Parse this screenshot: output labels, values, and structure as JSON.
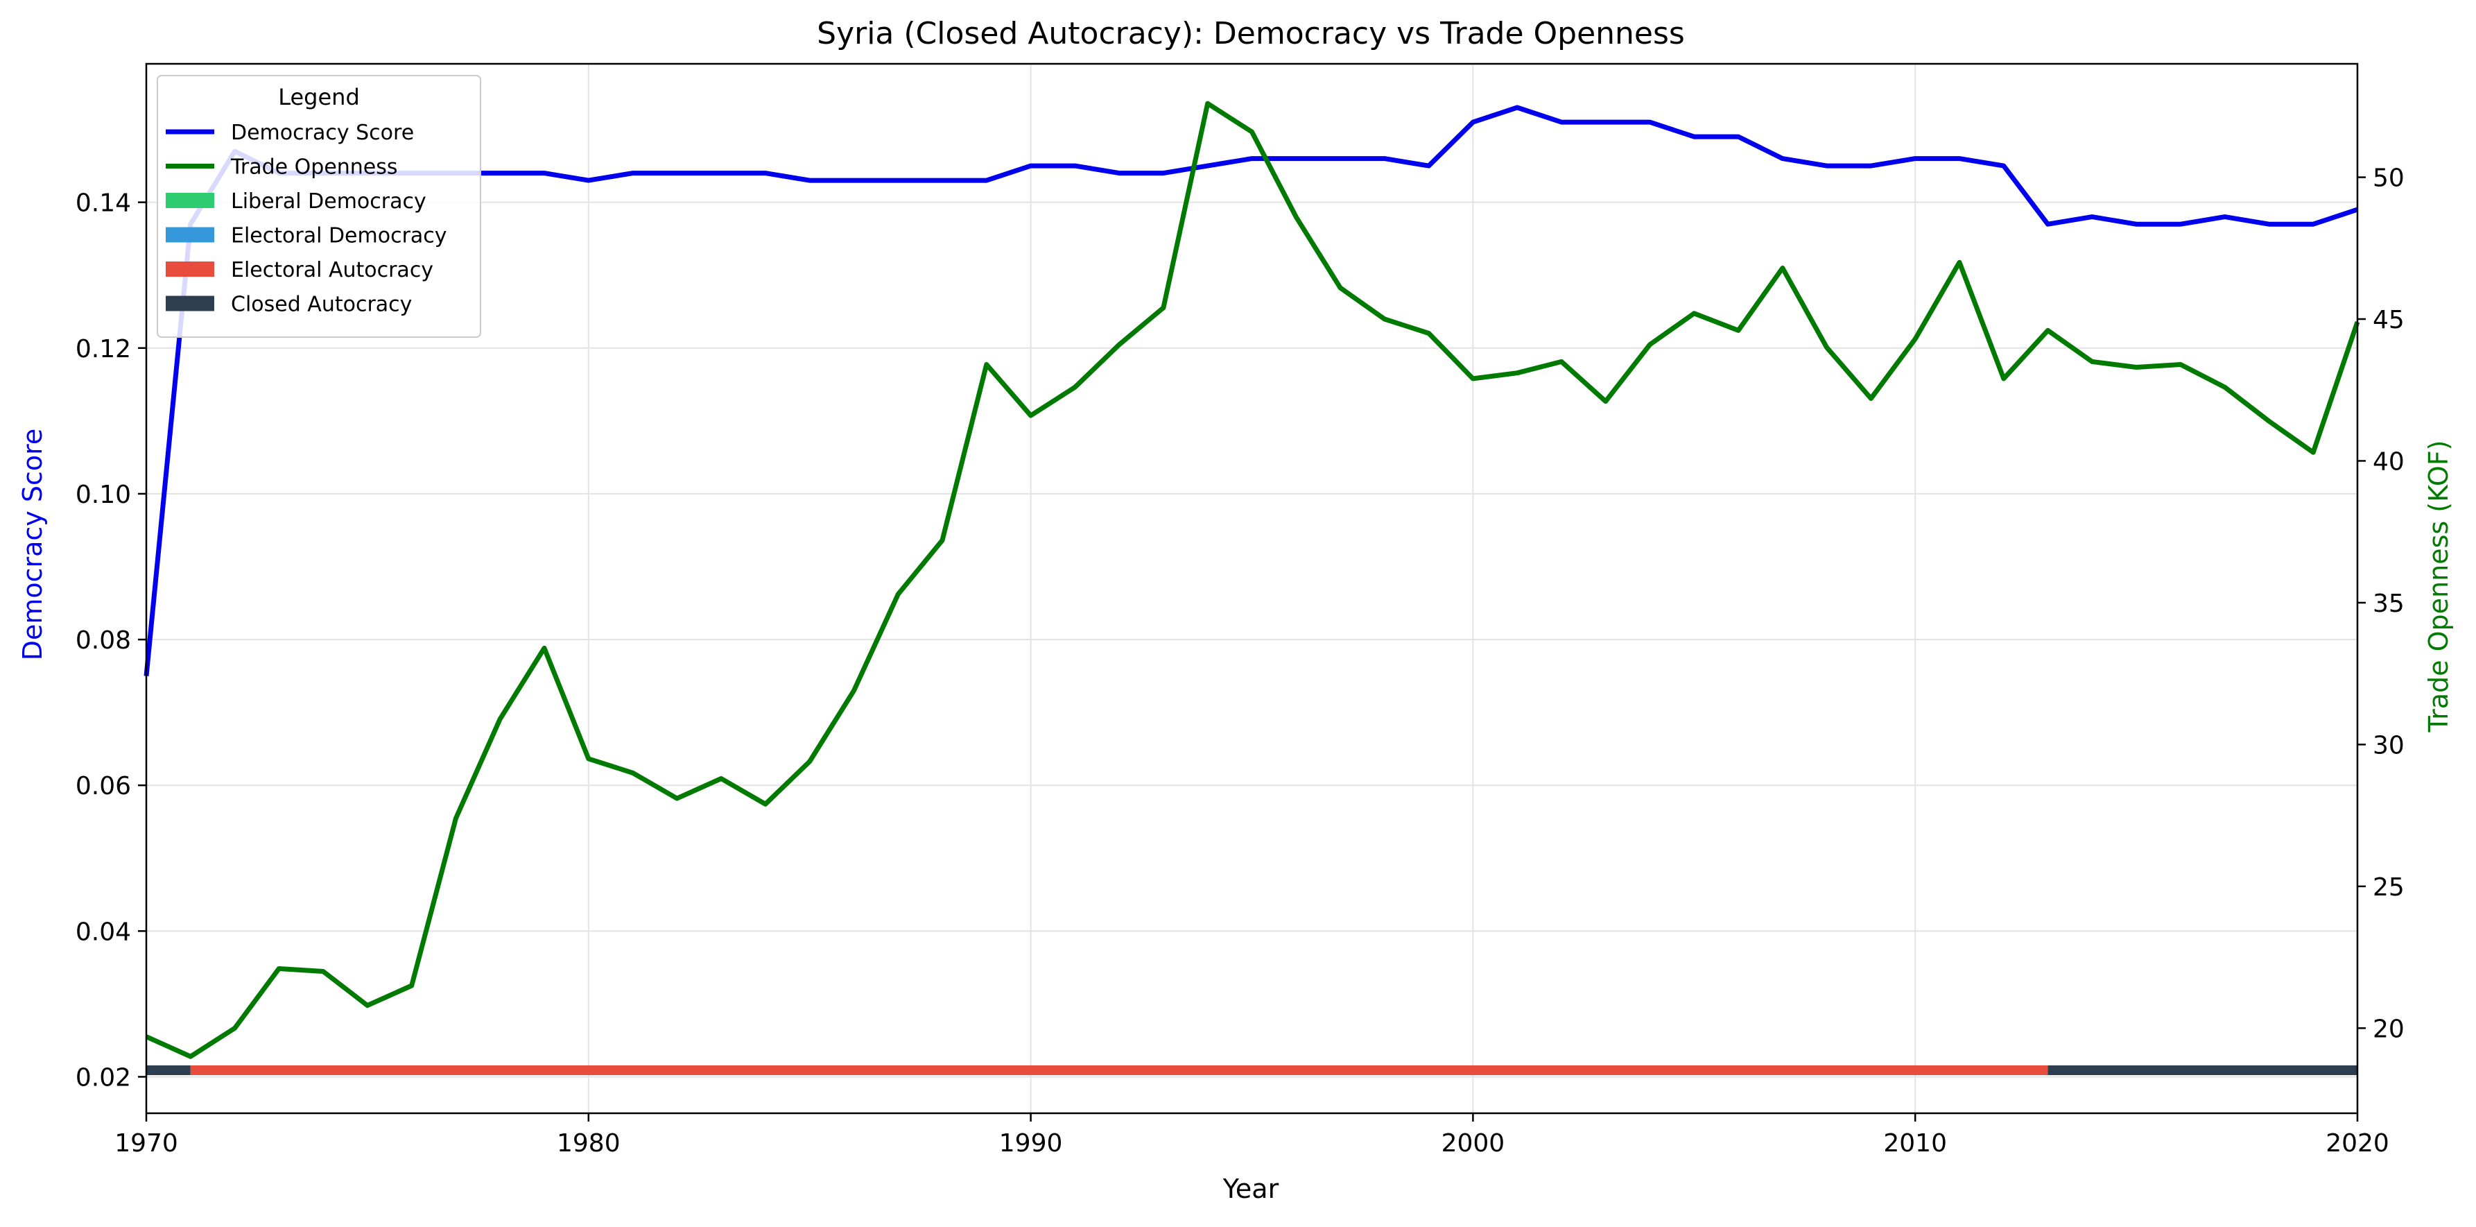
{
  "chart_data": {
    "type": "line",
    "title": "Syria (Closed Autocracy): Democracy vs Trade Openness",
    "xlabel": "Year",
    "ylabel_left": "Democracy Score",
    "ylabel_right": "Trade Openness (KOF)",
    "xlim": [
      1970,
      2020
    ],
    "ylim_left": [
      0.015,
      0.159
    ],
    "ylim_right": [
      17,
      54
    ],
    "xticks": [
      1970,
      1980,
      1990,
      2000,
      2010,
      2020
    ],
    "yticks_left": [
      0.02,
      0.04,
      0.06,
      0.08,
      0.1,
      0.12,
      0.14
    ],
    "ytick_labels_left": [
      "0.02",
      "0.04",
      "0.06",
      "0.08",
      "0.10",
      "0.12",
      "0.14"
    ],
    "yticks_right": [
      20,
      25,
      30,
      35,
      40,
      45,
      50
    ],
    "grid": true,
    "legend": {
      "title": "Legend",
      "placement": "upper-left",
      "entries": [
        {
          "label": "Democracy Score",
          "kind": "line",
          "color": "#0000ee"
        },
        {
          "label": "Trade Openness",
          "kind": "line",
          "color": "#007a00"
        },
        {
          "label": "Liberal Democracy",
          "kind": "patch",
          "color": "#2ecc71"
        },
        {
          "label": "Electoral Democracy",
          "kind": "patch",
          "color": "#3498db"
        },
        {
          "label": "Electoral Autocracy",
          "kind": "patch",
          "color": "#e74c3c"
        },
        {
          "label": "Closed Autocracy",
          "kind": "patch",
          "color": "#2c3e50"
        }
      ]
    },
    "x": [
      1970,
      1971,
      1972,
      1973,
      1974,
      1975,
      1976,
      1977,
      1978,
      1979,
      1980,
      1981,
      1982,
      1983,
      1984,
      1985,
      1986,
      1987,
      1988,
      1989,
      1990,
      1991,
      1992,
      1993,
      1994,
      1995,
      1996,
      1997,
      1998,
      1999,
      2000,
      2001,
      2002,
      2003,
      2004,
      2005,
      2006,
      2007,
      2008,
      2009,
      2010,
      2011,
      2012,
      2013,
      2014,
      2015,
      2016,
      2017,
      2018,
      2019,
      2020
    ],
    "series": [
      {
        "name": "Democracy Score",
        "axis": "left",
        "color": "#0000ee",
        "values": [
          0.075,
          0.137,
          0.147,
          0.144,
          0.144,
          0.144,
          0.144,
          0.144,
          0.144,
          0.144,
          0.143,
          0.144,
          0.144,
          0.144,
          0.144,
          0.143,
          0.143,
          0.143,
          0.143,
          0.143,
          0.145,
          0.145,
          0.144,
          0.144,
          0.145,
          0.146,
          0.146,
          0.146,
          0.146,
          0.145,
          0.151,
          0.153,
          0.151,
          0.151,
          0.151,
          0.149,
          0.149,
          0.146,
          0.145,
          0.145,
          0.146,
          0.146,
          0.145,
          0.137,
          0.138,
          0.137,
          0.137,
          0.138,
          0.137,
          0.137,
          0.139
        ]
      },
      {
        "name": "Trade Openness",
        "axis": "right",
        "color": "#007a00",
        "values": [
          19.7,
          19.0,
          20.0,
          22.1,
          22.0,
          20.8,
          21.5,
          27.4,
          30.9,
          33.4,
          29.5,
          29.0,
          28.1,
          28.8,
          27.9,
          29.4,
          31.9,
          35.3,
          37.2,
          43.4,
          41.6,
          42.6,
          44.1,
          45.4,
          52.6,
          51.6,
          48.6,
          46.1,
          45.0,
          44.5,
          42.9,
          43.1,
          43.5,
          42.1,
          44.1,
          45.2,
          44.6,
          46.8,
          44.0,
          42.2,
          44.3,
          47.0,
          42.9,
          44.6,
          43.5,
          43.3,
          43.4,
          42.6,
          41.4,
          40.3,
          44.9
        ]
      }
    ],
    "regime_bands": [
      {
        "label": "Closed Autocracy",
        "from": 1970,
        "to": 1971,
        "color": "#2c3e50"
      },
      {
        "label": "Electoral Autocracy",
        "from": 1971,
        "to": 2013,
        "color": "#e74c3c"
      },
      {
        "label": "Closed Autocracy",
        "from": 2013,
        "to": 2020,
        "color": "#2c3e50"
      }
    ]
  }
}
